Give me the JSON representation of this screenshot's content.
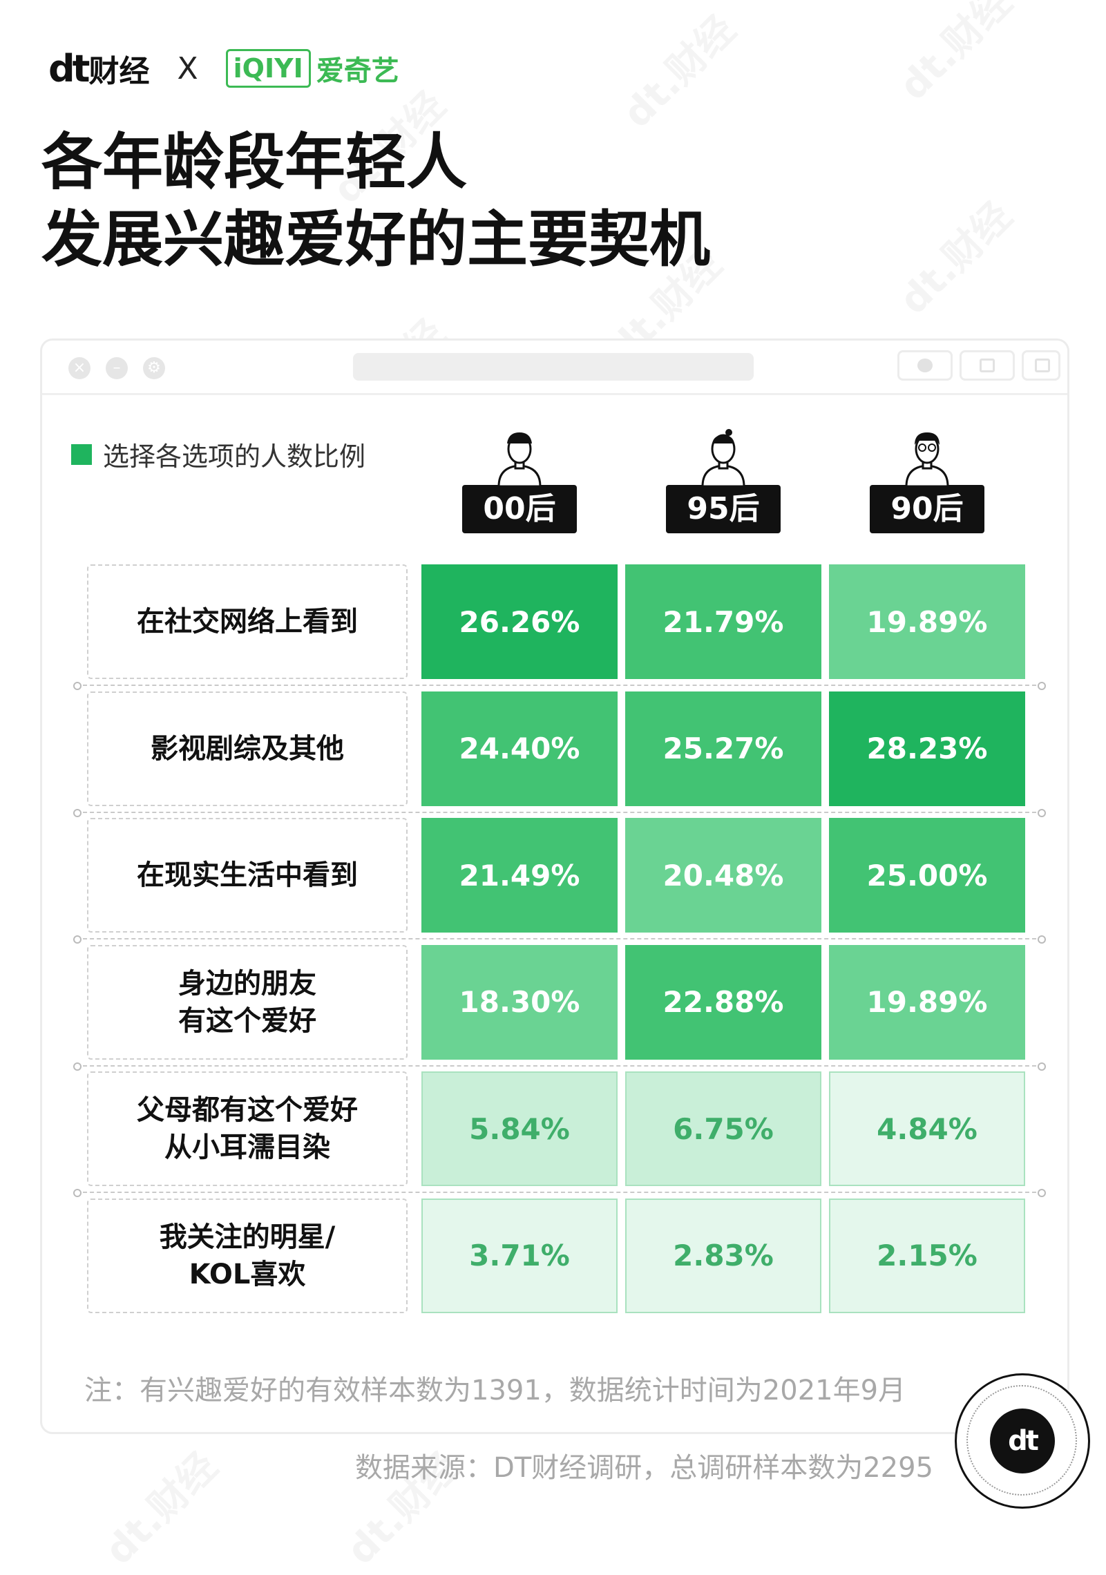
{
  "header": {
    "brand1_mark": "dt",
    "brand1_name": "财经",
    "separator": "X",
    "brand2_mark": "iQIYI",
    "brand2_name": "爱奇艺",
    "title_line1": "各年龄段年轻人",
    "title_line2": "发展兴趣爱好的主要契机"
  },
  "window": {
    "buttons": [
      "close-icon",
      "minimize-icon",
      "settings-icon"
    ],
    "controls": [
      "record-icon",
      "share-icon",
      "copy-icon"
    ]
  },
  "colors": {
    "level1": "#1fb45e",
    "level2": "#42c373",
    "level3": "#6ad393",
    "level4": "#c9efd8",
    "level5": "#e4f7ec",
    "light_text": "#3fae6a"
  },
  "chart_data": {
    "type": "table",
    "legend": "选择各选项的人数比例",
    "columns": [
      "00后",
      "95后",
      "90后"
    ],
    "rows": [
      {
        "label": "在社交网络上看到",
        "values": [
          "26.26%",
          "21.79%",
          "19.89%"
        ]
      },
      {
        "label": "影视剧综及其他",
        "values": [
          "24.40%",
          "25.27%",
          "28.23%"
        ]
      },
      {
        "label": "在现实生活中看到",
        "values": [
          "21.49%",
          "20.48%",
          "25.00%"
        ]
      },
      {
        "label": "身边的朋友\n有这个爱好",
        "values": [
          "18.30%",
          "22.88%",
          "19.89%"
        ]
      },
      {
        "label": "父母都有这个爱好\n从小耳濡目染",
        "values": [
          "5.84%",
          "6.75%",
          "4.84%"
        ]
      },
      {
        "label": "我关注的明星/\nKOL喜欢",
        "values": [
          "3.71%",
          "2.83%",
          "2.15%"
        ]
      }
    ]
  },
  "footer": {
    "note": "注：有兴趣爱好的有效样本数为1391，数据统计时间为2021年9月",
    "source": "数据来源：DT财经调研，总调研样本数为2295",
    "badge": "dt"
  },
  "watermark_text": "dt.财经"
}
